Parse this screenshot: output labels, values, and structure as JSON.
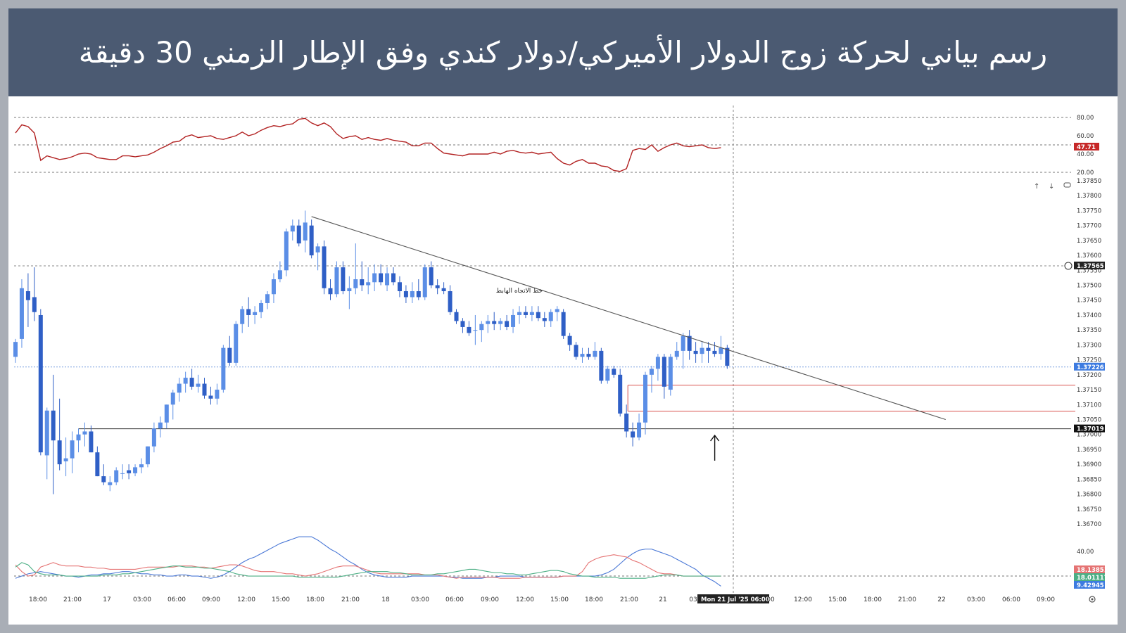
{
  "header": {
    "title": "رسم بياني لحركة زوج الدولار الأميركي/دولار كندي وفق الإطار الزمني 30 دقيقة"
  },
  "chart_data": [
    {
      "type": "line",
      "panel": "rsi",
      "yaxis": {
        "ticks": [
          "80.00",
          "60.00",
          "40.00",
          "20.00"
        ],
        "levels": [
          80,
          50,
          20
        ]
      },
      "current_value_badge": "47.71",
      "values": [
        63,
        72,
        70,
        63,
        33,
        38,
        36,
        34,
        35,
        37,
        40,
        41,
        40,
        36,
        35,
        34,
        34,
        38,
        38,
        37,
        38,
        39,
        42,
        46,
        49,
        53,
        54,
        59,
        61,
        58,
        59,
        60,
        57,
        56,
        58,
        60,
        64,
        60,
        62,
        66,
        69,
        71,
        70,
        72,
        73,
        78,
        79,
        74,
        71,
        74,
        70,
        62,
        57,
        59,
        60,
        56,
        58,
        56,
        55,
        57,
        55,
        54,
        53,
        49,
        49,
        52,
        52,
        46,
        41,
        40,
        39,
        38,
        40,
        40,
        40,
        40,
        42,
        40,
        43,
        44,
        42,
        41,
        42,
        40,
        41,
        42,
        35,
        30,
        28,
        32,
        34,
        30,
        30,
        27,
        26,
        22,
        21,
        24,
        44,
        46,
        45,
        50,
        43,
        47,
        50,
        52,
        49,
        48,
        49,
        50,
        47,
        46,
        47
      ],
      "color": "#b22222"
    },
    {
      "type": "candlestick",
      "panel": "price",
      "title": "",
      "yaxis": {
        "min": 1.367,
        "max": 1.3785,
        "ticks": [
          "1.37850",
          "1.37800",
          "1.37750",
          "1.37700",
          "1.37650",
          "1.37600",
          "1.37550",
          "1.37500",
          "1.37450",
          "1.37400",
          "1.37350",
          "1.37300",
          "1.37250",
          "1.37200",
          "1.37150",
          "1.37100",
          "1.37050",
          "1.37000",
          "1.36950",
          "1.36900",
          "1.36850",
          "1.36800",
          "1.36750",
          "1.36700"
        ]
      },
      "price_badges": {
        "hover": "1.37565",
        "last": "1.37226",
        "support": "1.37019"
      },
      "candles_ohlc": [
        [
          1.3726,
          1.3732,
          1.3724,
          1.3731
        ],
        [
          1.3732,
          1.3752,
          1.3729,
          1.3749
        ],
        [
          1.3748,
          1.3754,
          1.3736,
          1.3745
        ],
        [
          1.3746,
          1.3756,
          1.3738,
          1.3741
        ],
        [
          1.374,
          1.3742,
          1.3693,
          1.3694
        ],
        [
          1.3693,
          1.3709,
          1.3685,
          1.3708
        ],
        [
          1.3708,
          1.372,
          1.368,
          1.3698
        ],
        [
          1.3698,
          1.3712,
          1.3688,
          1.369
        ],
        [
          1.3691,
          1.3699,
          1.3686,
          1.3692
        ],
        [
          1.3692,
          1.3701,
          1.3687,
          1.3698
        ],
        [
          1.3698,
          1.3702,
          1.3694,
          1.37
        ],
        [
          1.37,
          1.3704,
          1.3696,
          1.3701
        ],
        [
          1.3701,
          1.3703,
          1.3694,
          1.3694
        ],
        [
          1.3694,
          1.3696,
          1.3686,
          1.3686
        ],
        [
          1.3686,
          1.369,
          1.3683,
          1.3684
        ],
        [
          1.3683,
          1.3686,
          1.3681,
          1.3684
        ],
        [
          1.3684,
          1.3689,
          1.3683,
          1.3688
        ],
        [
          1.3687,
          1.369,
          1.3685,
          1.3687
        ],
        [
          1.3688,
          1.369,
          1.3685,
          1.3687
        ],
        [
          1.3687,
          1.369,
          1.3686,
          1.3689
        ],
        [
          1.3689,
          1.3692,
          1.3687,
          1.369
        ],
        [
          1.369,
          1.3696,
          1.3689,
          1.3696
        ],
        [
          1.3696,
          1.3704,
          1.3694,
          1.3702
        ],
        [
          1.3702,
          1.3706,
          1.3699,
          1.3704
        ],
        [
          1.3704,
          1.371,
          1.3702,
          1.371
        ],
        [
          1.371,
          1.3715,
          1.3705,
          1.3714
        ],
        [
          1.3714,
          1.3719,
          1.3711,
          1.3717
        ],
        [
          1.3717,
          1.3721,
          1.3714,
          1.3719
        ],
        [
          1.3719,
          1.3722,
          1.3715,
          1.3716
        ],
        [
          1.3716,
          1.372,
          1.3714,
          1.3717
        ],
        [
          1.3717,
          1.3719,
          1.3712,
          1.3713
        ],
        [
          1.3713,
          1.3716,
          1.371,
          1.3712
        ],
        [
          1.3712,
          1.3717,
          1.371,
          1.3715
        ],
        [
          1.3715,
          1.373,
          1.3714,
          1.3729
        ],
        [
          1.3729,
          1.3733,
          1.3723,
          1.3724
        ],
        [
          1.3724,
          1.3738,
          1.3723,
          1.3737
        ],
        [
          1.3737,
          1.3743,
          1.3734,
          1.3742
        ],
        [
          1.3742,
          1.3746,
          1.3736,
          1.374
        ],
        [
          1.374,
          1.3743,
          1.3737,
          1.3741
        ],
        [
          1.3741,
          1.3745,
          1.3739,
          1.3744
        ],
        [
          1.3744,
          1.3748,
          1.3742,
          1.3747
        ],
        [
          1.3747,
          1.3754,
          1.3744,
          1.3752
        ],
        [
          1.3752,
          1.3758,
          1.3751,
          1.3755
        ],
        [
          1.3755,
          1.3769,
          1.3753,
          1.3768
        ],
        [
          1.3768,
          1.3772,
          1.3765,
          1.377
        ],
        [
          1.377,
          1.3772,
          1.3763,
          1.3764
        ],
        [
          1.3765,
          1.3775,
          1.3761,
          1.3771
        ],
        [
          1.377,
          1.3772,
          1.3759,
          1.376
        ],
        [
          1.3761,
          1.3764,
          1.3755,
          1.3763
        ],
        [
          1.3763,
          1.3765,
          1.3747,
          1.3749
        ],
        [
          1.3749,
          1.3752,
          1.3745,
          1.3747
        ],
        [
          1.3747,
          1.3758,
          1.3746,
          1.3756
        ],
        [
          1.3756,
          1.3758,
          1.3747,
          1.3748
        ],
        [
          1.3748,
          1.3753,
          1.3742,
          1.3749
        ],
        [
          1.3749,
          1.3764,
          1.3747,
          1.3752
        ],
        [
          1.3752,
          1.3758,
          1.3748,
          1.375
        ],
        [
          1.375,
          1.3756,
          1.3747,
          1.3751
        ],
        [
          1.3751,
          1.3757,
          1.3748,
          1.3754
        ],
        [
          1.3754,
          1.3757,
          1.375,
          1.3751
        ],
        [
          1.375,
          1.3756,
          1.3748,
          1.3754
        ],
        [
          1.3754,
          1.3756,
          1.375,
          1.3751
        ],
        [
          1.3751,
          1.3753,
          1.3746,
          1.3748
        ],
        [
          1.3748,
          1.375,
          1.3744,
          1.3746
        ],
        [
          1.3746,
          1.3751,
          1.3744,
          1.3748
        ],
        [
          1.3748,
          1.3752,
          1.3745,
          1.3746
        ],
        [
          1.3746,
          1.3757,
          1.3745,
          1.3756
        ],
        [
          1.3756,
          1.3758,
          1.3749,
          1.375
        ],
        [
          1.375,
          1.3752,
          1.3747,
          1.3749
        ],
        [
          1.3749,
          1.3751,
          1.3747,
          1.3748
        ],
        [
          1.3748,
          1.375,
          1.374,
          1.3741
        ],
        [
          1.3741,
          1.3742,
          1.3737,
          1.3738
        ],
        [
          1.3738,
          1.3739,
          1.3734,
          1.3736
        ],
        [
          1.3736,
          1.3738,
          1.3733,
          1.3734
        ],
        [
          1.3735,
          1.374,
          1.373,
          1.3735
        ],
        [
          1.3735,
          1.3738,
          1.3731,
          1.3737
        ],
        [
          1.3737,
          1.374,
          1.3734,
          1.3738
        ],
        [
          1.3738,
          1.3741,
          1.3735,
          1.3737
        ],
        [
          1.3737,
          1.3739,
          1.3735,
          1.3738
        ],
        [
          1.3738,
          1.374,
          1.3735,
          1.3736
        ],
        [
          1.3736,
          1.3742,
          1.3734,
          1.374
        ],
        [
          1.374,
          1.3743,
          1.3737,
          1.3741
        ],
        [
          1.3741,
          1.3743,
          1.3739,
          1.374
        ],
        [
          1.374,
          1.3743,
          1.3738,
          1.3741
        ],
        [
          1.3741,
          1.3743,
          1.3738,
          1.3739
        ],
        [
          1.3739,
          1.3741,
          1.3736,
          1.3738
        ],
        [
          1.3738,
          1.3742,
          1.3736,
          1.3741
        ],
        [
          1.3741,
          1.3743,
          1.3738,
          1.3742
        ],
        [
          1.3741,
          1.3742,
          1.3732,
          1.3733
        ],
        [
          1.3733,
          1.3734,
          1.3728,
          1.373
        ],
        [
          1.373,
          1.3731,
          1.3725,
          1.3726
        ],
        [
          1.3726,
          1.3729,
          1.3724,
          1.3727
        ],
        [
          1.3727,
          1.3729,
          1.3725,
          1.3726
        ],
        [
          1.3726,
          1.3731,
          1.3725,
          1.3728
        ],
        [
          1.3728,
          1.3729,
          1.3717,
          1.3718
        ],
        [
          1.3718,
          1.3723,
          1.3717,
          1.3722
        ],
        [
          1.3722,
          1.3723,
          1.3719,
          1.372
        ],
        [
          1.372,
          1.3722,
          1.3706,
          1.3707
        ],
        [
          1.3707,
          1.371,
          1.3699,
          1.3701
        ],
        [
          1.3701,
          1.3704,
          1.3696,
          1.3699
        ],
        [
          1.3699,
          1.3707,
          1.3698,
          1.3704
        ],
        [
          1.3704,
          1.3721,
          1.37,
          1.372
        ],
        [
          1.372,
          1.3723,
          1.3714,
          1.3722
        ],
        [
          1.3722,
          1.3727,
          1.3718,
          1.3726
        ],
        [
          1.3726,
          1.3727,
          1.3712,
          1.3716
        ],
        [
          1.3715,
          1.3727,
          1.3713,
          1.3726
        ],
        [
          1.3726,
          1.3731,
          1.3725,
          1.3728
        ],
        [
          1.3728,
          1.3734,
          1.3722,
          1.3733
        ],
        [
          1.3733,
          1.3735,
          1.3725,
          1.3728
        ],
        [
          1.3728,
          1.3731,
          1.3724,
          1.3727
        ],
        [
          1.3727,
          1.3731,
          1.3724,
          1.3729
        ],
        [
          1.3729,
          1.3731,
          1.3724,
          1.3728
        ],
        [
          1.3728,
          1.3731,
          1.3726,
          1.3727
        ],
        [
          1.3727,
          1.3733,
          1.3725,
          1.3729
        ],
        [
          1.3729,
          1.373,
          1.3722,
          1.3723
        ]
      ],
      "trendline": {
        "from": [
          1.3773,
          47
        ],
        "to": [
          1.3705,
          145
        ],
        "label": "خط الاتجاه الهابط"
      },
      "horizontal_lines": [
        1.37019,
        1.37565,
        1.37226
      ],
      "zone": {
        "top": 1.37165,
        "bottom": 1.37078,
        "start_index": 97
      },
      "up_arrow_at_index": 108
    },
    {
      "type": "line",
      "panel": "dmi",
      "yaxis": {
        "ticks": [
          "40.00"
        ],
        "level": 18
      },
      "badges": [
        "18.13851",
        "18.01117",
        "9.42945"
      ],
      "series": [
        {
          "color": "#4a78d6",
          "values": [
            16,
            18,
            20,
            21,
            22,
            21,
            20,
            19,
            18,
            18,
            17,
            18,
            19,
            19,
            20,
            20,
            21,
            22,
            22,
            21,
            20,
            20,
            19,
            19,
            18,
            18,
            19,
            19,
            18,
            18,
            17,
            16,
            17,
            19,
            22,
            26,
            30,
            33,
            35,
            38,
            41,
            44,
            47,
            49,
            51,
            53,
            53,
            53,
            50,
            46,
            42,
            39,
            35,
            31,
            28,
            24,
            21,
            19,
            18,
            17,
            17,
            17,
            17,
            18,
            18,
            18,
            18,
            18,
            18,
            17,
            17,
            16,
            16,
            16,
            16,
            17,
            17,
            18,
            18,
            18,
            18,
            17,
            17,
            17,
            17,
            17,
            17,
            18,
            18,
            18,
            18,
            18,
            18,
            19,
            21,
            24,
            29,
            34,
            38,
            41,
            42,
            42,
            40,
            38,
            36,
            33,
            30,
            27,
            24,
            19,
            16,
            13,
            9
          ]
        },
        {
          "color": "#e57373",
          "values": [
            28,
            22,
            18,
            19,
            26,
            28,
            30,
            28,
            27,
            27,
            27,
            26,
            26,
            25,
            25,
            24,
            24,
            24,
            24,
            24,
            25,
            26,
            26,
            26,
            26,
            26,
            27,
            27,
            27,
            26,
            26,
            25,
            26,
            27,
            28,
            28,
            27,
            25,
            23,
            22,
            22,
            22,
            21,
            20,
            20,
            19,
            18,
            19,
            20,
            22,
            24,
            26,
            27,
            27,
            27,
            25,
            23,
            21,
            20,
            20,
            20,
            20,
            20,
            20,
            20,
            19,
            19,
            19,
            18,
            17,
            16,
            17,
            17,
            17,
            17,
            17,
            17,
            16,
            16,
            16,
            16,
            17,
            17,
            17,
            17,
            17,
            17,
            18,
            18,
            18,
            22,
            30,
            33,
            35,
            36,
            37,
            36,
            35,
            32,
            30,
            27,
            24,
            21,
            20,
            20,
            19,
            18,
            18,
            18,
            18,
            18,
            18,
            18
          ]
        },
        {
          "color": "#4caf85",
          "values": [
            26,
            30,
            28,
            22,
            20,
            19,
            19,
            19,
            18,
            18,
            18,
            18,
            18,
            18,
            19,
            19,
            19,
            20,
            20,
            21,
            22,
            23,
            24,
            25,
            26,
            27,
            27,
            26,
            26,
            26,
            25,
            25,
            24,
            23,
            22,
            20,
            19,
            18,
            18,
            18,
            18,
            18,
            18,
            18,
            18,
            17,
            17,
            17,
            17,
            17,
            17,
            17,
            18,
            19,
            20,
            21,
            22,
            22,
            22,
            22,
            21,
            21,
            20,
            19,
            19,
            19,
            19,
            20,
            20,
            21,
            22,
            23,
            24,
            24,
            23,
            22,
            21,
            21,
            20,
            20,
            19,
            19,
            20,
            21,
            22,
            23,
            23,
            22,
            20,
            19,
            18,
            18,
            17,
            17,
            17,
            17,
            16,
            16,
            16,
            16,
            16,
            17,
            18,
            19,
            19,
            19,
            18,
            18,
            18,
            18,
            18,
            18,
            18
          ]
        }
      ]
    }
  ],
  "xaxis": {
    "labels": [
      "18:00",
      "21:00",
      "17",
      "03:00",
      "06:00",
      "09:00",
      "12:00",
      "15:00",
      "18:00",
      "21:00",
      "18",
      "03:00",
      "06:00",
      "09:00",
      "12:00",
      "15:00",
      "18:00",
      "21:00",
      "21",
      "03",
      "Mon 21 Jul '25   06:00",
      "00",
      "12:00",
      "15:00",
      "18:00",
      "21:00",
      "22",
      "03:00",
      "06:00",
      "09:00"
    ]
  }
}
